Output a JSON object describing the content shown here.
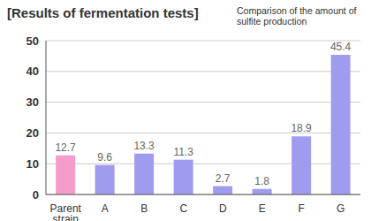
{
  "chart_data": {
    "type": "bar",
    "title": "[Results of fermentation tests]",
    "subtitle": "Comparison of the amount of sulfite production",
    "categories": [
      "Parent strain",
      "A",
      "B",
      "C",
      "D",
      "E",
      "F",
      "G"
    ],
    "values": [
      12.7,
      9.6,
      13.3,
      11.3,
      2.7,
      1.8,
      18.9,
      45.4
    ],
    "colors": [
      "#f59ccb",
      "#9f9cf0",
      "#9f9cf0",
      "#9f9cf0",
      "#9f9cf0",
      "#9f9cf0",
      "#9f9cf0",
      "#9f9cf0"
    ],
    "ylim": [
      0,
      50
    ],
    "yticks": [
      0,
      10,
      20,
      30,
      40,
      50
    ],
    "grid": true,
    "data_labels": true
  }
}
